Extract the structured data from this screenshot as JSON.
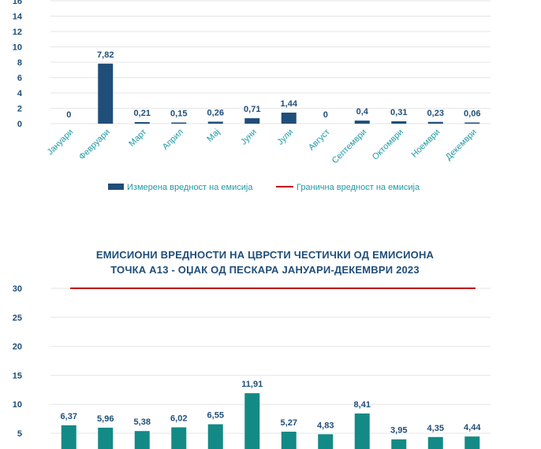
{
  "chart_data": [
    {
      "type": "bar",
      "title": "",
      "categories": [
        "Јануари",
        "Февруари",
        "Март",
        "Април",
        "Мај",
        "Јуни",
        "Јули",
        "Август",
        "Септември",
        "Октомври",
        "Ноември",
        "Декември"
      ],
      "series": [
        {
          "name": "Измерена вредност на емисија",
          "values": [
            0,
            7.82,
            0.21,
            0.15,
            0.26,
            0.71,
            1.44,
            0,
            0.4,
            0.31,
            0.23,
            0.06
          ],
          "color": "#1f4e79"
        },
        {
          "name": "Гранична вредност на емисија",
          "type": "line",
          "color": "#c00000"
        }
      ],
      "data_labels": [
        "0",
        "7,82",
        "0,21",
        "0,15",
        "0,26",
        "0,71",
        "1,44",
        "0",
        "0,4",
        "0,31",
        "0,23",
        "0,06"
      ],
      "yticks": [
        "0",
        "2",
        "4",
        "6",
        "8",
        "10",
        "12",
        "14",
        "16"
      ],
      "ylim": [
        0,
        16
      ],
      "legend": "bottom",
      "grid": true
    },
    {
      "type": "bar",
      "title_line1": "ЕМИСИОНИ ВРЕДНОСТИ НА ЦВРСТИ ЧЕСТИЧКИ ОД ЕМИСИОНА",
      "title_line2": "ТОЧКА А13 - ОЏАК ОД ПЕСКАРА ЈАНУАРИ-ДЕКЕМВРИ 2023",
      "values": [
        6.37,
        5.96,
        5.38,
        6.02,
        6.55,
        11.91,
        5.27,
        4.83,
        8.41,
        3.95,
        4.35,
        4.44
      ],
      "data_labels": [
        "6,37",
        "5,96",
        "5,38",
        "6,02",
        "6,55",
        "11,91",
        "5,27",
        "4,83",
        "8,41",
        "3,95",
        "4,35",
        "4,44"
      ],
      "limit_value": 30,
      "yticks": [
        "5",
        "10",
        "15",
        "20",
        "25",
        "30"
      ],
      "ylim": [
        0,
        30
      ],
      "bar_color": "#138a86",
      "limit_color": "#c00000",
      "grid": true
    }
  ]
}
